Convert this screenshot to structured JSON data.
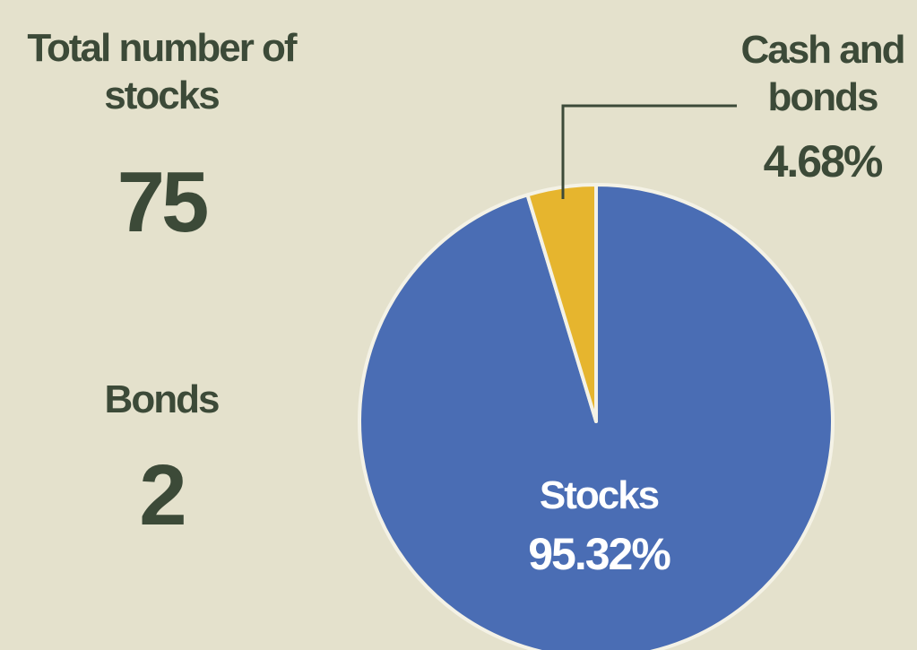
{
  "chart_data": {
    "type": "pie",
    "categories": [
      "Stocks",
      "Cash and bonds"
    ],
    "values": [
      95.32,
      4.68
    ],
    "value_labels": [
      "95.32%",
      "4.68%"
    ],
    "colors": [
      "#4a6db4",
      "#e6b52e"
    ],
    "stats": [
      {
        "label": "Total number of stocks",
        "value": 75
      },
      {
        "label": "Bonds",
        "value": 2
      }
    ]
  }
}
